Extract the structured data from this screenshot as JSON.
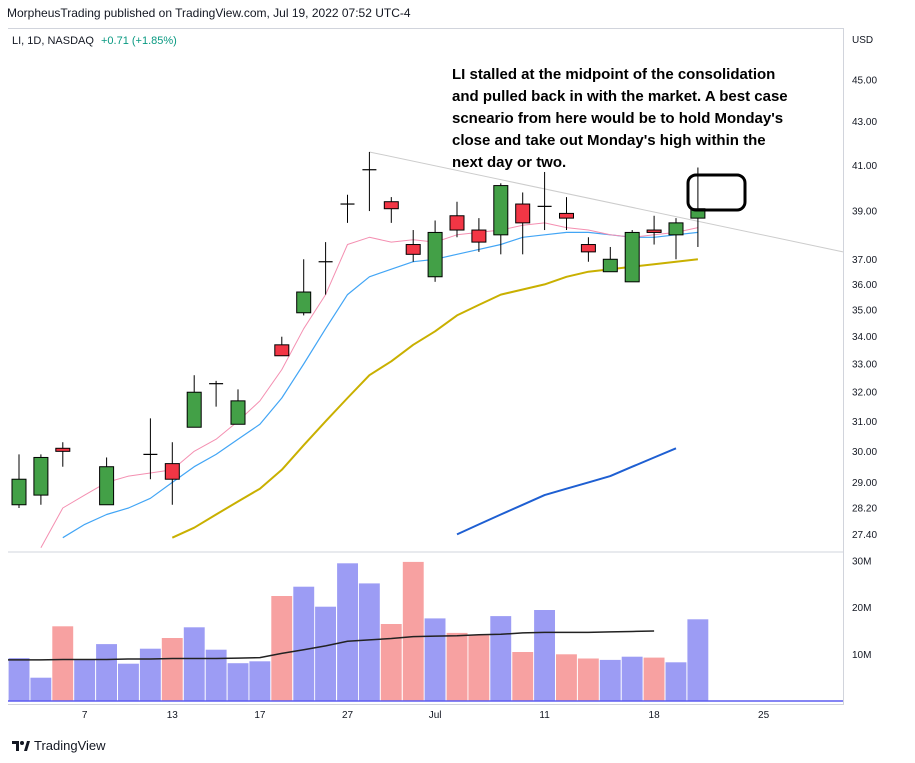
{
  "header": {
    "publisher_line": "MorpheusTrading published on TradingView.com, Jul 19, 2022 07:52 UTC-4"
  },
  "legend": {
    "symbol_line": "LI, 1D, NASDAQ",
    "change": "+0.71 (+1.85%)"
  },
  "annotation": {
    "text": "LI stalled at the midpoint of the consolidation and pulled back in with the market.  A best case scneario from here would be to hold Monday's close and take out Monday's high within the next day or two."
  },
  "footer": {
    "brand": "TradingView"
  },
  "colors": {
    "up": "#43a047",
    "down": "#f23645",
    "ema_fast": "#f48fb1",
    "ema_mid": "#42a5f5",
    "sma_50": "#c9b000",
    "sma_200": "#1e5fd2",
    "volume_up": "#9c9cf4",
    "volume_down": "#f7a1a1",
    "volume_ma": "#222222",
    "trendline": "#cccccc",
    "highlight_box": "#000000"
  },
  "chart_data": {
    "type": "candlestick",
    "symbol": "LI",
    "interval": "1D",
    "exchange": "NASDAQ",
    "currency_label": "USD",
    "price_ticks": [
      "45.00",
      "43.00",
      "41.00",
      "39.00",
      "37.00",
      "36.00",
      "35.00",
      "34.00",
      "33.00",
      "32.00",
      "31.00",
      "30.00",
      "29.00",
      "28.20",
      "27.40"
    ],
    "volume_ticks": [
      "30M",
      "20M",
      "10M"
    ],
    "x_ticks": [
      {
        "label": "7",
        "idx": 3
      },
      {
        "label": "13",
        "idx": 7
      },
      {
        "label": "17",
        "idx": 11
      },
      {
        "label": "27",
        "idx": 15
      },
      {
        "label": "Jul",
        "idx": 19
      },
      {
        "label": "11",
        "idx": 24
      },
      {
        "label": "18",
        "idx": 29
      },
      {
        "label": "25",
        "idx": 34
      }
    ],
    "candles": [
      {
        "idx": 0,
        "o": 28.3,
        "h": 29.9,
        "l": 28.2,
        "c": 29.1,
        "v": 9.2
      },
      {
        "idx": 1,
        "o": 28.6,
        "h": 29.9,
        "l": 28.3,
        "c": 29.8,
        "v": 5.0
      },
      {
        "idx": 2,
        "o": 30.1,
        "h": 30.3,
        "l": 29.5,
        "c": 30.0,
        "v": 16.0
      },
      {
        "idx": 3,
        "o": null,
        "h": null,
        "l": null,
        "c": null,
        "v": 9.0
      },
      {
        "idx": 4,
        "o": 28.3,
        "h": 29.8,
        "l": 28.3,
        "c": 29.5,
        "v": 12.2
      },
      {
        "idx": 5,
        "o": null,
        "h": null,
        "l": null,
        "c": null,
        "v": 8.0
      },
      {
        "idx": 6,
        "o": 29.9,
        "h": 31.1,
        "l": 29.1,
        "c": 29.9,
        "v": 11.2
      },
      {
        "idx": 7,
        "o": 29.6,
        "h": 30.3,
        "l": 28.3,
        "c": 29.1,
        "v": 13.5
      },
      {
        "idx": 8,
        "o": 30.8,
        "h": 32.6,
        "l": 30.8,
        "c": 32.0,
        "v": 15.8
      },
      {
        "idx": 9,
        "o": 32.3,
        "h": 32.4,
        "l": 31.5,
        "c": 32.3,
        "v": 11.0
      },
      {
        "idx": 10,
        "o": 30.9,
        "h": 32.1,
        "l": 30.9,
        "c": 31.7,
        "v": 8.1
      },
      {
        "idx": 11,
        "o": null,
        "h": null,
        "l": null,
        "c": null,
        "v": 8.5
      },
      {
        "idx": 12,
        "o": 33.7,
        "h": 34.0,
        "l": 33.3,
        "c": 33.3,
        "v": 22.5
      },
      {
        "idx": 13,
        "o": 34.9,
        "h": 37.0,
        "l": 34.8,
        "c": 35.7,
        "v": 24.5
      },
      {
        "idx": 14,
        "o": 36.9,
        "h": 37.7,
        "l": 35.6,
        "c": 36.9,
        "v": 20.2
      },
      {
        "idx": 15,
        "o": 39.3,
        "h": 39.7,
        "l": 38.5,
        "c": 39.3,
        "v": 29.5
      },
      {
        "idx": 16,
        "o": 40.8,
        "h": 41.6,
        "l": 39.0,
        "c": 40.8,
        "v": 25.2
      },
      {
        "idx": 17,
        "o": 39.4,
        "h": 39.6,
        "l": 38.5,
        "c": 39.1,
        "v": 16.5
      },
      {
        "idx": 18,
        "o": 37.6,
        "h": 38.2,
        "l": 36.9,
        "c": 37.2,
        "v": 29.8
      },
      {
        "idx": 19,
        "o": 36.3,
        "h": 38.6,
        "l": 36.1,
        "c": 38.1,
        "v": 17.7
      },
      {
        "idx": 20,
        "o": 38.8,
        "h": 39.4,
        "l": 37.9,
        "c": 38.2,
        "v": 14.6
      },
      {
        "idx": 21,
        "o": 38.2,
        "h": 38.7,
        "l": 37.3,
        "c": 37.7,
        "v": 14.1
      },
      {
        "idx": 22,
        "o": 38.0,
        "h": 40.2,
        "l": 37.2,
        "c": 40.1,
        "v": 18.2
      },
      {
        "idx": 23,
        "o": 39.3,
        "h": 39.8,
        "l": 37.2,
        "c": 38.5,
        "v": 10.5
      },
      {
        "idx": 24,
        "o": 39.2,
        "h": 40.7,
        "l": 38.2,
        "c": 39.2,
        "v": 19.5
      },
      {
        "idx": 25,
        "o": 38.9,
        "h": 39.6,
        "l": 38.2,
        "c": 38.7,
        "v": 10.0
      },
      {
        "idx": 26,
        "o": 37.6,
        "h": 37.9,
        "l": 36.9,
        "c": 37.3,
        "v": 9.1
      },
      {
        "idx": 27,
        "o": 36.5,
        "h": 37.5,
        "l": 36.5,
        "c": 37.0,
        "v": 8.8
      },
      {
        "idx": 28,
        "o": 36.1,
        "h": 38.2,
        "l": 36.1,
        "c": 38.1,
        "v": 9.5
      },
      {
        "idx": 29,
        "o": 38.2,
        "h": 38.8,
        "l": 37.6,
        "c": 38.1,
        "v": 9.3
      },
      {
        "idx": 30,
        "o": 38.0,
        "h": 38.7,
        "l": 37.0,
        "c": 38.5,
        "v": 8.3
      },
      {
        "idx": 31,
        "o": 38.7,
        "h": 40.9,
        "l": 37.5,
        "c": 39.1,
        "v": 17.5
      }
    ],
    "ema_fast": [
      27.0,
      28.2,
      28.6,
      29.0,
      29.2,
      29.3,
      29.4,
      30.0,
      30.4,
      31.0,
      31.7,
      32.8,
      34.3,
      35.6,
      37.6,
      37.9,
      37.7,
      37.8,
      37.7,
      38.0,
      38.1,
      38.2,
      38.4,
      38.5,
      38.3,
      38.2,
      38.0,
      37.9,
      38.0,
      38.1,
      38.3
    ],
    "ema_mid": [
      27.3,
      27.7,
      28.0,
      28.2,
      28.5,
      29.0,
      29.5,
      29.9,
      30.4,
      30.9,
      31.8,
      33.0,
      34.3,
      35.6,
      36.3,
      36.6,
      36.9,
      37.0,
      37.2,
      37.4,
      37.6,
      37.9,
      38.0,
      38.1,
      38.1,
      38.0,
      37.9,
      37.9,
      38.0,
      38.1
    ],
    "sma_50": [
      27.3,
      27.6,
      28.0,
      28.4,
      28.8,
      29.4,
      30.2,
      31.0,
      31.8,
      32.6,
      33.1,
      33.7,
      34.2,
      34.8,
      35.2,
      35.6,
      35.8,
      36.0,
      36.3,
      36.5,
      36.6,
      36.7,
      36.8,
      36.9,
      37.0
    ],
    "sma_200": [
      27.4,
      27.7,
      28.0,
      28.3,
      28.6,
      28.8,
      29.0,
      29.2,
      29.5,
      29.8,
      30.1
    ],
    "volume_ma": [
      8.8,
      8.8,
      8.9,
      8.9,
      8.9,
      9.0,
      9.0,
      9.1,
      9.1,
      9.1,
      9.2,
      9.3,
      10.2,
      11.0,
      11.8,
      12.8,
      13.1,
      13.4,
      13.8,
      13.9,
      14.0,
      14.2,
      14.3,
      14.6,
      14.7,
      14.7,
      14.7,
      14.8,
      14.9,
      15.0
    ],
    "trendline": {
      "from": {
        "idx": 16,
        "price": 41.6
      },
      "to": {
        "idx": 38,
        "price": 37.3
      }
    }
  }
}
